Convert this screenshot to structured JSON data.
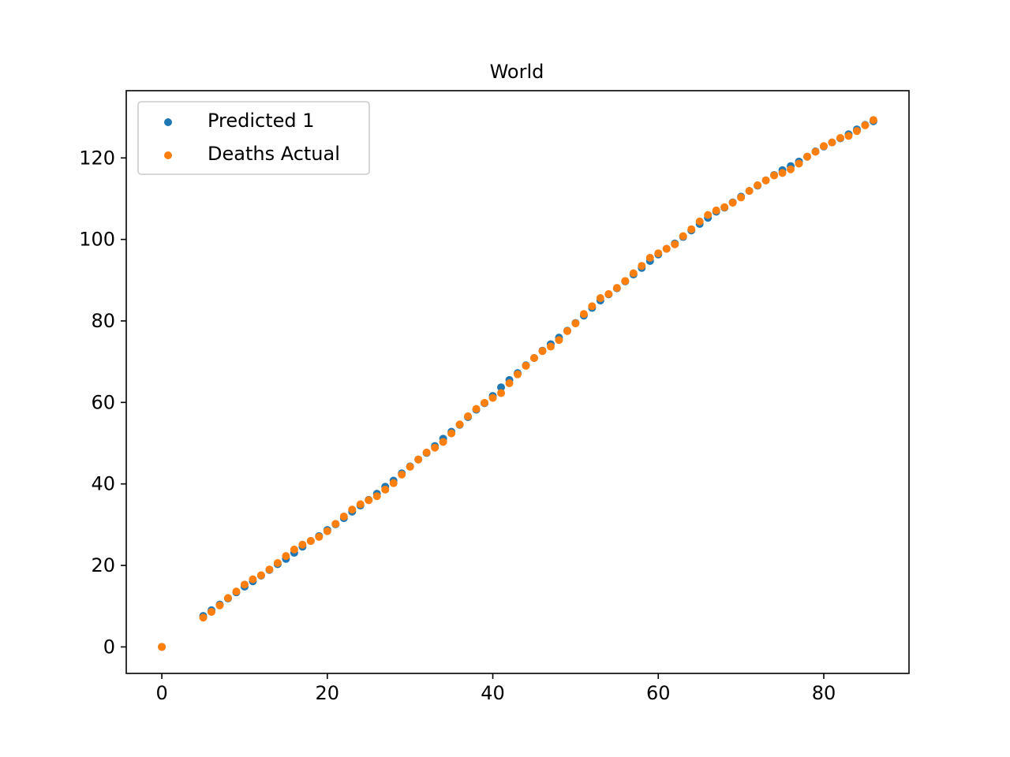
{
  "chart_data": {
    "type": "scatter",
    "title": "World",
    "xlabel": "",
    "ylabel": "",
    "xlim": [
      -4.3,
      90.3
    ],
    "ylim": [
      -6.5,
      136.5
    ],
    "xticks": [
      0,
      20,
      40,
      60,
      80
    ],
    "yticks": [
      0,
      20,
      40,
      60,
      80,
      100,
      120
    ],
    "grid": false,
    "legend_position": "top-left",
    "series": [
      {
        "name": "Predicted 1",
        "color": "#1f77b4",
        "x": [
          0,
          5,
          6,
          7,
          8,
          9,
          10,
          11,
          12,
          13,
          14,
          15,
          16,
          17,
          18,
          19,
          20,
          21,
          22,
          23,
          24,
          25,
          26,
          27,
          28,
          29,
          30,
          31,
          32,
          33,
          34,
          35,
          36,
          37,
          38,
          39,
          40,
          41,
          42,
          43,
          44,
          45,
          46,
          47,
          48,
          49,
          50,
          51,
          52,
          53,
          54,
          55,
          56,
          57,
          58,
          59,
          60,
          61,
          62,
          63,
          64,
          65,
          66,
          67,
          68,
          69,
          70,
          71,
          72,
          73,
          74,
          75,
          76,
          77,
          78,
          79,
          80,
          81,
          82,
          83,
          84,
          85,
          86
        ],
        "y": [
          0,
          7.6,
          9.0,
          10.4,
          11.9,
          13.4,
          14.8,
          16.1,
          17.5,
          18.9,
          20.3,
          21.6,
          23.1,
          24.6,
          26.0,
          27.2,
          28.7,
          30.1,
          31.6,
          33.2,
          34.7,
          36.1,
          37.6,
          39.3,
          40.8,
          42.6,
          44.3,
          46.0,
          47.6,
          49.3,
          51.1,
          52.8,
          54.5,
          56.4,
          58.2,
          59.8,
          61.6,
          63.7,
          65.5,
          67.2,
          69.1,
          70.9,
          72.7,
          74.3,
          75.9,
          77.6,
          79.5,
          81.3,
          83.2,
          85.0,
          86.5,
          88.0,
          89.7,
          91.4,
          93.0,
          94.7,
          96.3,
          97.7,
          99.0,
          100.6,
          102.2,
          103.8,
          105.3,
          106.8,
          107.8,
          109.1,
          110.5,
          111.9,
          113.2,
          114.5,
          115.8,
          117.0,
          118.0,
          119.1,
          120.3,
          121.6,
          122.8,
          123.8,
          124.8,
          125.8,
          127.0,
          128.1,
          129.0
        ]
      },
      {
        "name": "Deaths Actual",
        "color": "#ff7f0e",
        "x": [
          0,
          5,
          6,
          7,
          8,
          9,
          10,
          11,
          12,
          13,
          14,
          15,
          16,
          17,
          18,
          19,
          20,
          21,
          22,
          23,
          24,
          25,
          26,
          27,
          28,
          29,
          30,
          31,
          32,
          33,
          34,
          35,
          36,
          37,
          38,
          39,
          40,
          41,
          42,
          43,
          44,
          45,
          46,
          47,
          48,
          49,
          50,
          51,
          52,
          53,
          54,
          55,
          56,
          57,
          58,
          59,
          60,
          61,
          62,
          63,
          64,
          65,
          66,
          67,
          68,
          69,
          70,
          71,
          72,
          73,
          74,
          75,
          76,
          77,
          78,
          79,
          80,
          81,
          82,
          83,
          84,
          85,
          86
        ],
        "y": [
          0,
          7.2,
          8.6,
          10.2,
          12.0,
          13.6,
          15.3,
          16.6,
          17.6,
          19.0,
          20.6,
          22.3,
          23.9,
          25.1,
          26.0,
          27.0,
          28.4,
          30.2,
          32.0,
          33.7,
          35.0,
          36.0,
          37.0,
          38.6,
          40.2,
          42.3,
          44.2,
          46.0,
          47.7,
          48.9,
          50.3,
          52.4,
          54.6,
          56.6,
          58.4,
          59.9,
          61.1,
          62.3,
          64.7,
          66.9,
          69.0,
          70.9,
          72.6,
          73.7,
          75.3,
          77.5,
          79.4,
          81.7,
          83.6,
          85.6,
          86.6,
          88.1,
          89.8,
          91.7,
          93.5,
          95.5,
          96.6,
          97.7,
          98.8,
          100.8,
          102.5,
          104.4,
          106.0,
          107.1,
          107.9,
          109.0,
          110.3,
          111.9,
          113.3,
          114.5,
          115.7,
          116.3,
          117.2,
          118.6,
          120.3,
          121.5,
          122.9,
          123.8,
          124.9,
          125.4,
          126.6,
          128.0,
          129.3
        ]
      }
    ]
  }
}
